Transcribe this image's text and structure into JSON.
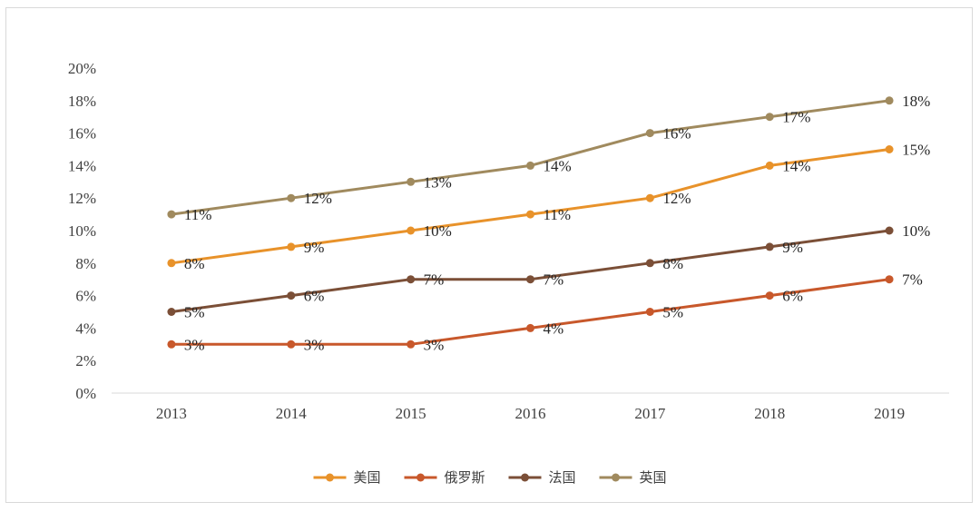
{
  "chart_data": {
    "type": "line",
    "title": "",
    "xlabel": "",
    "ylabel": "",
    "categories": [
      "2013",
      "2014",
      "2015",
      "2016",
      "2017",
      "2018",
      "2019"
    ],
    "ylim": [
      0,
      20
    ],
    "yticks": [
      "0%",
      "2%",
      "4%",
      "6%",
      "8%",
      "10%",
      "12%",
      "14%",
      "16%",
      "18%",
      "20%"
    ],
    "grid": false,
    "legend_position": "bottom",
    "series": [
      {
        "name": "美国",
        "color": "#e8922a",
        "values": [
          8,
          9,
          10,
          11,
          12,
          14,
          15
        ],
        "labels": [
          "8%",
          "9%",
          "10%",
          "11%",
          "12%",
          "14%",
          "15%"
        ]
      },
      {
        "name": "俄罗斯",
        "color": "#c8582b",
        "values": [
          3,
          3,
          3,
          4,
          5,
          6,
          7
        ],
        "labels": [
          "3%",
          "3%",
          "3%",
          "4%",
          "5%",
          "6%",
          "7%"
        ]
      },
      {
        "name": "法国",
        "color": "#7b4f37",
        "values": [
          5,
          6,
          7,
          7,
          8,
          9,
          10
        ],
        "labels": [
          "5%",
          "6%",
          "7%",
          "7%",
          "8%",
          "9%",
          "10%"
        ]
      },
      {
        "name": "英国",
        "color": "#a08a5e",
        "values": [
          11,
          12,
          13,
          14,
          16,
          17,
          18
        ],
        "labels": [
          "11%",
          "12%",
          "13%",
          "14%",
          "16%",
          "17%",
          "18%"
        ]
      }
    ]
  }
}
